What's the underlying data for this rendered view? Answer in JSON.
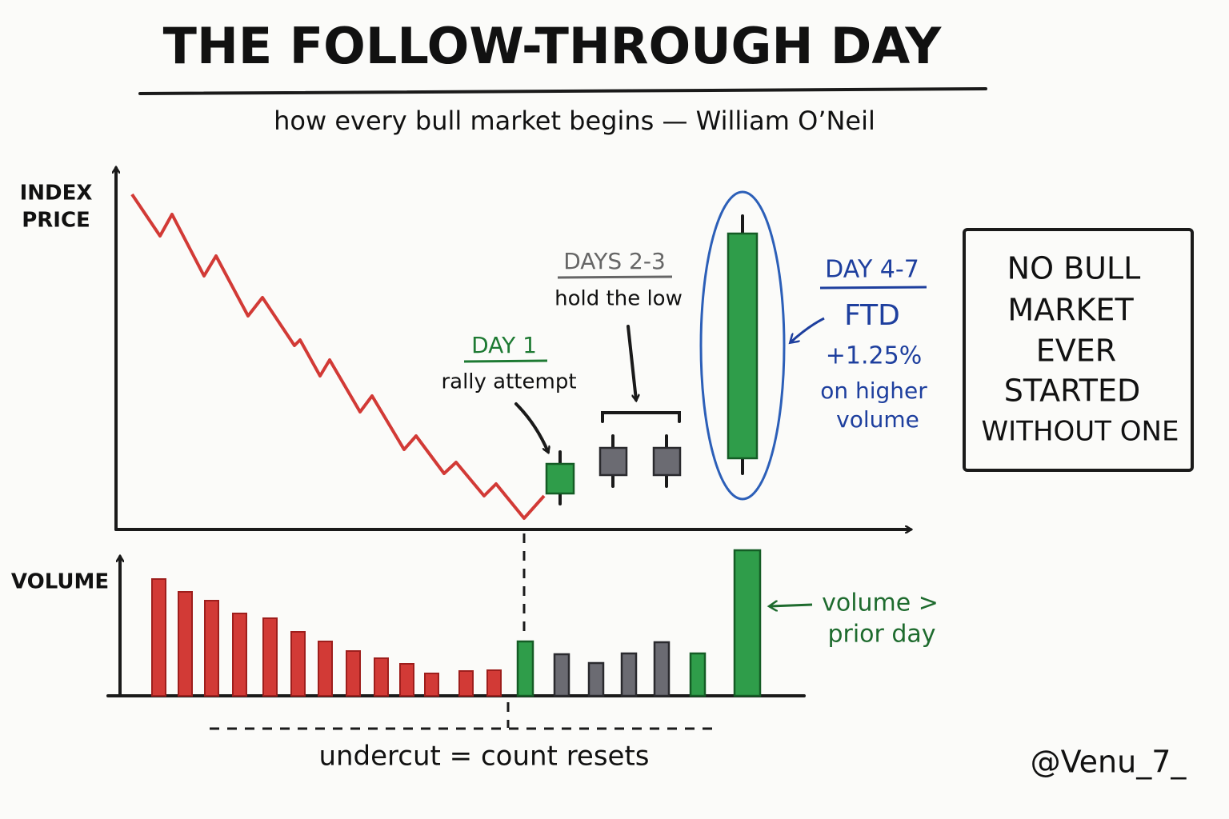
{
  "title": "THE FOLLOW-THROUGH DAY",
  "subtitle": "how every bull market begins — William O’Neil",
  "price_axis": {
    "label": [
      "INDEX",
      "PRICE"
    ]
  },
  "volume_axis": {
    "label": "VOLUME"
  },
  "annotations": {
    "day1": {
      "title": "DAY 1",
      "note": "rally attempt"
    },
    "days23": {
      "title": "DAYS 2-3",
      "note": "hold the low"
    },
    "day47": {
      "title": "DAY 4-7",
      "label": "FTD",
      "gain": "+1.25%",
      "note": [
        "on higher",
        "volume"
      ]
    }
  },
  "callout": {
    "lines": [
      "NO BULL",
      "MARKET",
      "EVER",
      "STARTED",
      "WITHOUT ONE"
    ]
  },
  "volume_note": {
    "lines": [
      "volume >",
      "prior day"
    ]
  },
  "undercut_note": "undercut = count resets",
  "handle": "@Venu_7_"
}
